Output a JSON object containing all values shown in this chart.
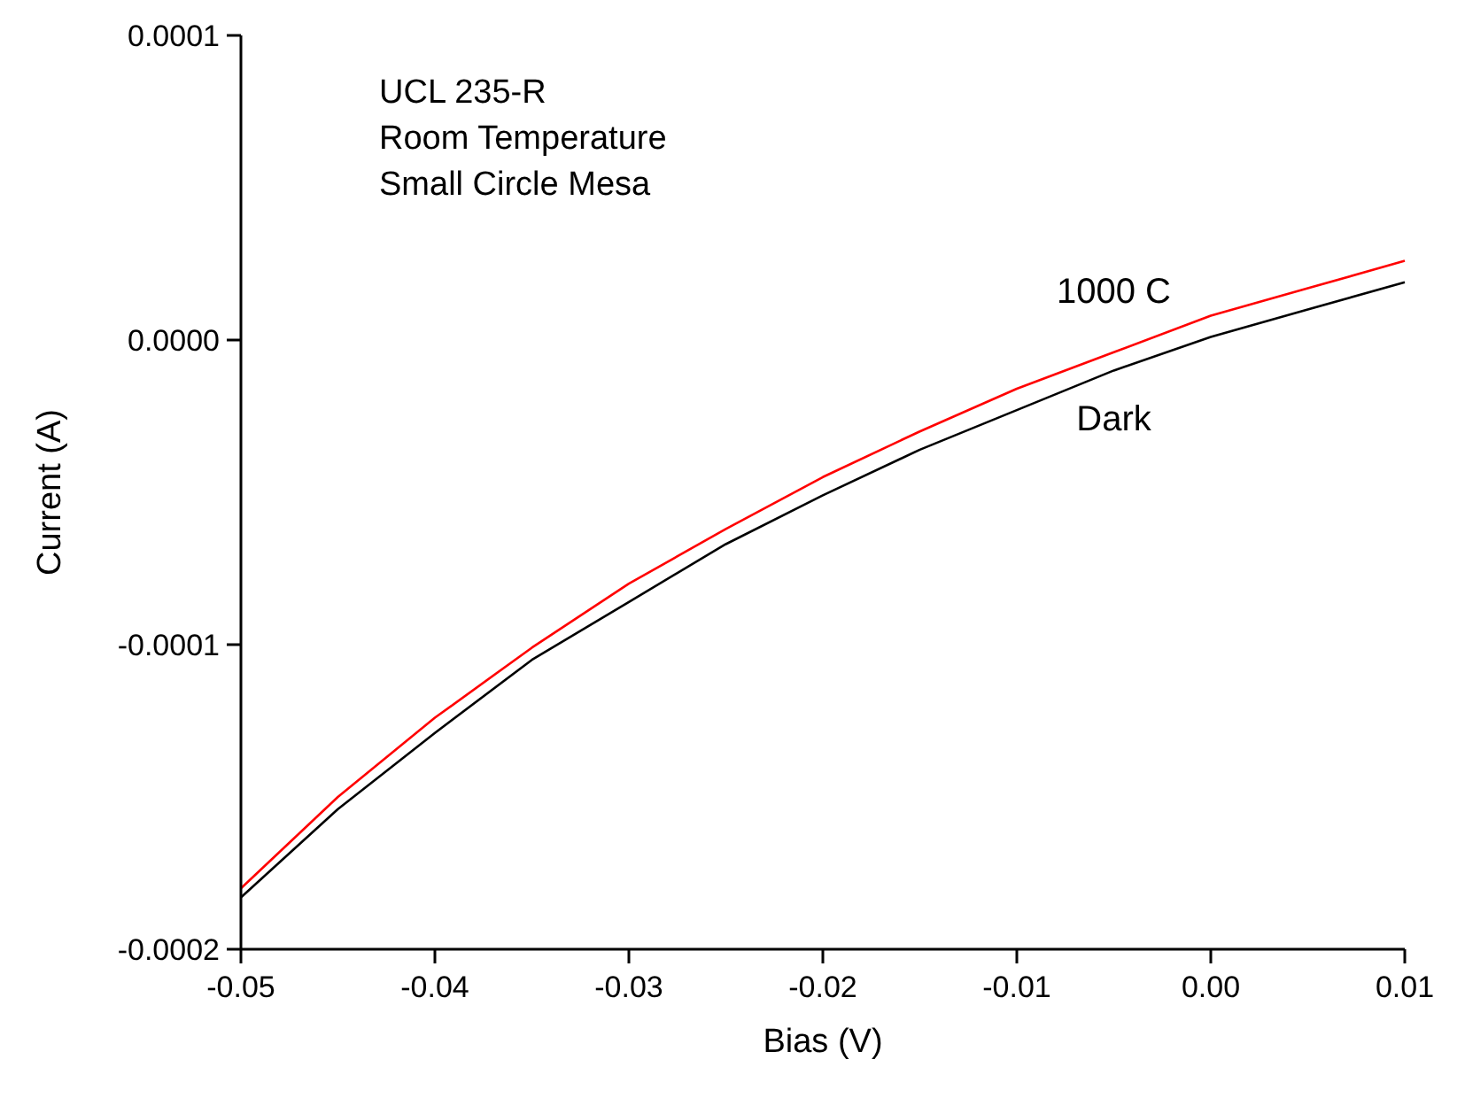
{
  "chart_data": {
    "type": "line",
    "xlabel": "Bias (V)",
    "ylabel": "Current (A)",
    "annotations": [
      "UCL 235-R",
      "Room Temperature",
      "Small Circle Mesa"
    ],
    "x": [
      -0.05,
      -0.045,
      -0.04,
      -0.035,
      -0.03,
      -0.025,
      -0.02,
      -0.015,
      -0.01,
      -0.005,
      0,
      0.005,
      0.01
    ],
    "series": [
      {
        "name": "1000 C",
        "color": "#ff0000",
        "values": [
          -0.00018,
          -0.00015,
          -0.000124,
          -0.000101,
          -8e-05,
          -6.2e-05,
          -4.5e-05,
          -3e-05,
          -1.6e-05,
          -4e-06,
          8e-06,
          1.7e-05,
          2.6e-05
        ]
      },
      {
        "name": "Dark",
        "color": "#000000",
        "values": [
          -0.000183,
          -0.000154,
          -0.000129,
          -0.000105,
          -8.6e-05,
          -6.7e-05,
          -5.1e-05,
          -3.6e-05,
          -2.3e-05,
          -1e-05,
          1e-06,
          1e-05,
          1.9e-05
        ]
      }
    ],
    "xlim": [
      -0.05,
      0.01
    ],
    "xticks": [
      -0.05,
      -0.04,
      -0.03,
      -0.02,
      -0.01,
      {
        "value": 0,
        "label": "0.00"
      },
      0.01
    ],
    "ylim": [
      -0.0002,
      0.0001
    ],
    "yticks": [
      {
        "value": -0.0002,
        "label": "-0.0002"
      },
      {
        "value": -0.0001,
        "label": "-0.0001"
      },
      {
        "value": 0,
        "label": "0.0000"
      },
      {
        "value": 0.0001,
        "label": "0.0001"
      }
    ],
    "grid": false,
    "legend": false,
    "marker": "none",
    "line_style": "solid"
  }
}
